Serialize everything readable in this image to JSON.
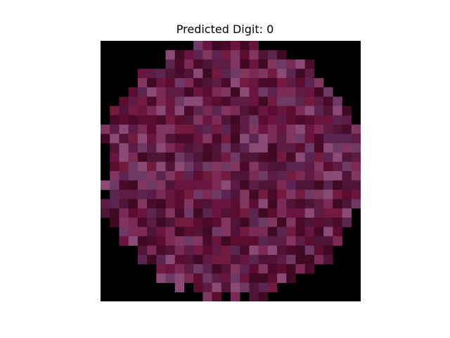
{
  "figure": {
    "title": "Predicted Digit: 0"
  },
  "image": {
    "grid_size": 28,
    "background_color": "#000000",
    "palette": [
      "#5a0d2e",
      "#6a1440",
      "#4a0a2a",
      "#7a2a55",
      "#5e1c45",
      "#6e3a63",
      "#8a4a75",
      "#3f0a22",
      "#731a3f",
      "#5b2550",
      "#80365f",
      "#4f1436"
    ],
    "blob": {
      "shape": "circle",
      "center_x": 14.0,
      "center_y": 13.8,
      "radius": 13.9
    }
  }
}
